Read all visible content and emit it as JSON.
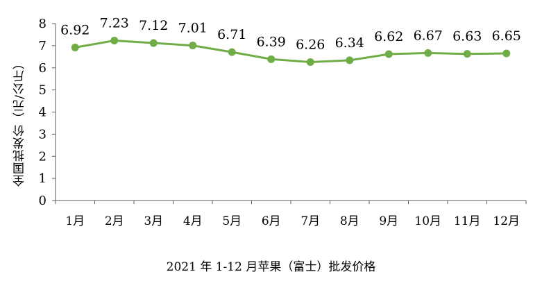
{
  "chart_data": {
    "type": "line",
    "title": "",
    "caption": "2021 年 1-12 月苹果（富士）批发价格",
    "xlabel": "",
    "ylabel": "全国批发价（元/公斤）",
    "categories": [
      "1月",
      "2月",
      "3月",
      "4月",
      "5月",
      "6月",
      "7月",
      "8月",
      "9月",
      "10月",
      "11月",
      "12月"
    ],
    "series": [
      {
        "values": [
          6.92,
          7.23,
          7.12,
          7.01,
          6.71,
          6.39,
          6.26,
          6.34,
          6.62,
          6.67,
          6.63,
          6.65
        ],
        "data_labels": [
          "6.92",
          "7.23",
          "7.12",
          "7.01",
          "6.71",
          "6.39",
          "6.26",
          "6.34",
          "6.62",
          "6.67",
          "6.63",
          "6.65"
        ],
        "color": "#70ad47"
      }
    ],
    "ylim": [
      0,
      8
    ],
    "yticks": [
      "0",
      "1",
      "2",
      "3",
      "4",
      "5",
      "6",
      "7",
      "8"
    ],
    "grid": false,
    "legend": "none"
  }
}
